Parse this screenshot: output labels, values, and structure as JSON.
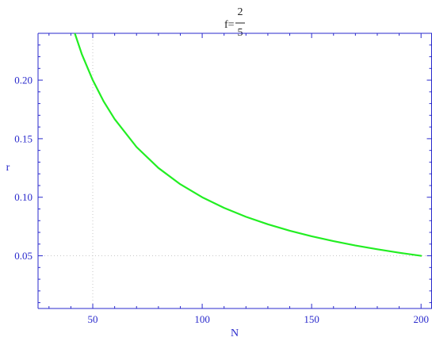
{
  "chart_data": {
    "type": "line",
    "title": {
      "prefix": "f=",
      "numerator": "2",
      "denominator": "5"
    },
    "xlabel": "N",
    "ylabel": "r",
    "xlim": [
      25,
      205
    ],
    "ylim": [
      0.005,
      0.24
    ],
    "x_ticks": [
      50,
      100,
      150,
      200
    ],
    "x_tick_labels": [
      "50",
      "100",
      "150",
      "200"
    ],
    "y_ticks": [
      0.05,
      0.1,
      0.15,
      0.2
    ],
    "y_tick_labels": [
      "0.05",
      "0.10",
      "0.15",
      "0.20"
    ],
    "gridlines": {
      "x": [
        50
      ],
      "y": [
        0.05
      ]
    },
    "series": [
      {
        "color": "#22ee22",
        "function": "r = 10 / N",
        "x": [
          40,
          45,
          50,
          55,
          60,
          70,
          80,
          90,
          100,
          110,
          120,
          130,
          140,
          150,
          160,
          170,
          180,
          190,
          200
        ],
        "y": [
          0.25,
          0.2222,
          0.2,
          0.1818,
          0.1667,
          0.1429,
          0.125,
          0.1111,
          0.1,
          0.0909,
          0.0833,
          0.0769,
          0.0714,
          0.0667,
          0.0625,
          0.0588,
          0.0556,
          0.0526,
          0.05
        ]
      }
    ],
    "colors": {
      "axis": "#2a2acc",
      "grid": "#c8c8c8",
      "curve": "#22ee22"
    }
  }
}
